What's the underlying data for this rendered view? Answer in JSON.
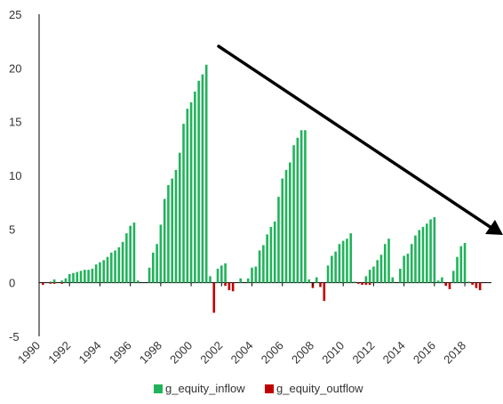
{
  "chart_data": {
    "type": "bar",
    "title": "",
    "xlabel": "",
    "ylabel": "",
    "ylim": [
      -5,
      25
    ],
    "y_ticks": [
      "-5",
      "0",
      "5",
      "10",
      "15",
      "20",
      "25"
    ],
    "x_ticks": [
      "1990",
      "1992",
      "1994",
      "1996",
      "1998",
      "2000",
      "2002",
      "2004",
      "2006",
      "2008",
      "2010",
      "2012",
      "2014",
      "2016",
      "2018"
    ],
    "x_range": [
      1990,
      2019.75
    ],
    "grid": false,
    "legend_position": "bottom",
    "series": [
      {
        "name": "g_equity_inflow",
        "color": "#21b35b",
        "x": [
          1990.75,
          1991.0,
          1991.5,
          1991.75,
          1992.0,
          1992.25,
          1992.5,
          1992.75,
          1993.0,
          1993.25,
          1993.5,
          1993.75,
          1994.0,
          1994.25,
          1994.5,
          1994.75,
          1995.0,
          1995.25,
          1995.5,
          1995.75,
          1996.0,
          1996.25,
          1996.5,
          1997.25,
          1997.5,
          1997.75,
          1998.0,
          1998.25,
          1998.5,
          1998.75,
          1999.0,
          1999.25,
          1999.5,
          1999.75,
          2000.0,
          2000.25,
          2000.5,
          2000.75,
          2001.0,
          2001.25,
          2001.75,
          2002.0,
          2002.25,
          2003.25,
          2003.75,
          2004.0,
          2004.25,
          2004.5,
          2004.75,
          2005.0,
          2005.25,
          2005.5,
          2005.75,
          2006.0,
          2006.25,
          2006.5,
          2006.75,
          2007.0,
          2007.25,
          2007.5,
          2007.75,
          2008.25,
          2009.0,
          2009.25,
          2009.5,
          2009.75,
          2010.0,
          2010.25,
          2010.5,
          2010.75,
          2011.5,
          2011.75,
          2012.0,
          2012.25,
          2012.5,
          2012.75,
          2013.0,
          2013.25,
          2013.75,
          2014.0,
          2014.25,
          2014.5,
          2014.75,
          2015.0,
          2015.25,
          2015.5,
          2015.75,
          2016.0,
          2016.25,
          2016.5,
          2017.25,
          2017.5,
          2017.75,
          2018.0,
          2018.25
        ],
        "values": [
          0.1,
          0.3,
          0.2,
          0.4,
          0.8,
          0.9,
          1.0,
          1.1,
          1.2,
          1.2,
          1.3,
          1.7,
          1.9,
          2.1,
          2.4,
          2.8,
          3.0,
          3.3,
          3.8,
          4.6,
          5.3,
          5.6,
          0.2,
          1.4,
          2.8,
          3.6,
          5.4,
          7.8,
          9.1,
          9.7,
          10.5,
          12.1,
          14.8,
          16.2,
          16.8,
          17.8,
          18.8,
          19.4,
          20.3,
          0.6,
          1.3,
          1.6,
          1.8,
          0.4,
          0.4,
          1.4,
          1.5,
          3.0,
          3.5,
          4.5,
          5.2,
          5.7,
          8.0,
          9.7,
          10.5,
          11.2,
          12.8,
          13.5,
          14.2,
          14.2,
          0.3,
          0.5,
          1.6,
          2.5,
          2.9,
          3.6,
          3.9,
          4.1,
          4.6,
          0.1,
          0.6,
          1.2,
          1.5,
          2.1,
          2.6,
          3.6,
          4.1,
          0.5,
          1.3,
          2.5,
          2.7,
          3.6,
          4.4,
          4.9,
          5.2,
          5.5,
          5.9,
          6.1,
          0.2,
          0.5,
          1.1,
          2.4,
          3.4,
          3.7,
          0.1
        ]
      },
      {
        "name": "g_equity_outflow",
        "color": "#c00000",
        "x": [
          1990.25,
          1990.75,
          1991.0,
          1991.5,
          2001.5,
          2002.25,
          2002.5,
          2002.75,
          2008.0,
          2008.5,
          2008.75,
          2011.0,
          2011.25,
          2011.5,
          2011.75,
          2016.75,
          2017.0,
          2018.5,
          2018.75,
          2019.0
        ],
        "values": [
          -0.2,
          -0.1,
          -0.1,
          -0.1,
          -2.8,
          -0.3,
          -0.7,
          -0.8,
          -0.5,
          -0.4,
          -1.7,
          -0.1,
          -0.2,
          -0.2,
          -0.2,
          -0.3,
          -0.6,
          -0.2,
          -0.5,
          -0.7
        ]
      }
    ]
  }
}
